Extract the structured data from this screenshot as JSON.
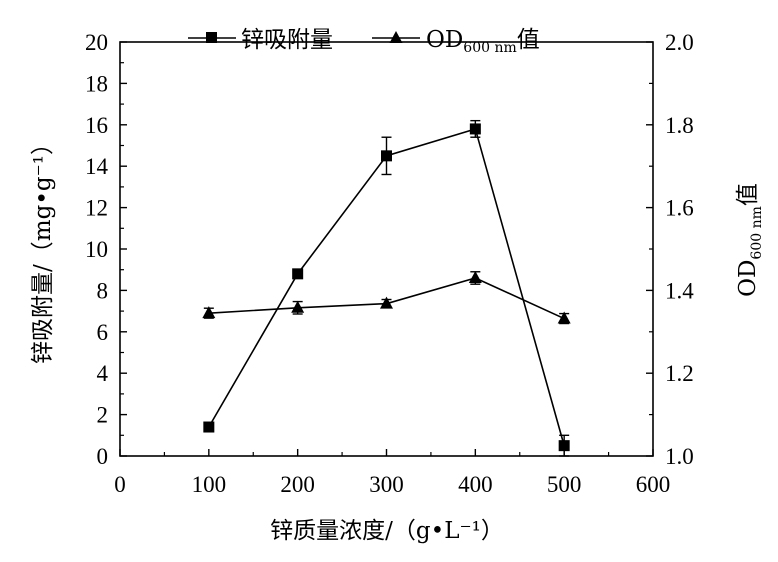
{
  "chart_data": {
    "type": "line",
    "xlabel": "锌质量浓度/（g•L⁻¹）",
    "ylabel_left": "锌吸附量/（mg•g⁻¹）",
    "ylabel_right_main": "OD",
    "ylabel_right_sub": "600 nm",
    "ylabel_right_suffix": "值",
    "xlim": [
      0,
      600
    ],
    "ylim_left": [
      0,
      20
    ],
    "ylim_right": [
      1.0,
      2.0
    ],
    "x_ticks": [
      "0",
      "100",
      "200",
      "300",
      "400",
      "500",
      "600"
    ],
    "y_left_ticks": [
      "0",
      "2",
      "4",
      "6",
      "8",
      "10",
      "12",
      "14",
      "16",
      "18",
      "20"
    ],
    "y_right_ticks": [
      "1.0",
      "1.2",
      "1.4",
      "1.6",
      "1.8",
      "2.0"
    ],
    "legend_position": "top",
    "series": [
      {
        "name": "锌吸附量",
        "axis": "left",
        "marker": "square",
        "x": [
          100,
          200,
          300,
          400,
          500
        ],
        "y": [
          1.4,
          8.8,
          14.5,
          15.8,
          0.5
        ],
        "err": [
          0,
          0,
          0.9,
          0.4,
          0.5
        ]
      },
      {
        "name_main": "OD",
        "name_sub": "600 nm",
        "name_suffix": "值",
        "axis": "right",
        "marker": "triangle",
        "x": [
          100,
          200,
          300,
          400,
          500
        ],
        "y": [
          1.345,
          1.358,
          1.368,
          1.43,
          1.332
        ],
        "err": [
          0.012,
          0.015,
          0.01,
          0.015,
          0.012
        ]
      }
    ]
  }
}
